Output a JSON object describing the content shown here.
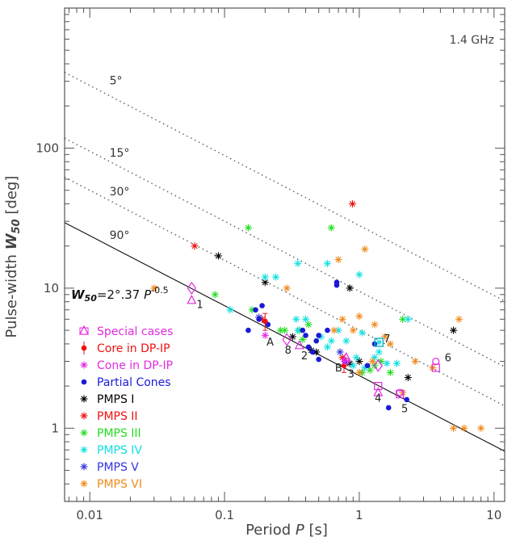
{
  "chart_data": {
    "type": "scatter",
    "xscale": "log",
    "yscale": "log",
    "xlim": [
      0.0065,
      12
    ],
    "ylim": [
      0.3,
      1000
    ],
    "xlabel": "Period P [s]",
    "ylabel": "Pulse-width W50 [deg]",
    "annotation": "1.4 GHz",
    "fit_label": "W50=2°.37 P^-0.5",
    "x_ticks": [
      "0.01",
      "0.1",
      "1",
      "10"
    ],
    "x_tick_values": [
      0.01,
      0.1,
      1,
      10
    ],
    "y_ticks": [
      "1",
      "10",
      "100"
    ],
    "y_tick_values": [
      1,
      10,
      100
    ],
    "lines": [
      {
        "label": "90°",
        "style": "solid",
        "coef": 2.37
      },
      {
        "label": "30°",
        "style": "dotted",
        "coef": 5.0
      },
      {
        "label": "15°",
        "style": "dotted",
        "coef": 9.5
      },
      {
        "label": "5°",
        "style": "dotted",
        "coef": 28.0
      }
    ],
    "line_labels": [
      {
        "text": "5°",
        "x": 0.014,
        "y": 285
      },
      {
        "text": "15°",
        "x": 0.014,
        "y": 87
      },
      {
        "text": "30°",
        "x": 0.014,
        "y": 46
      },
      {
        "text": "90°",
        "x": 0.014,
        "y": 22.5
      }
    ],
    "legend": [
      {
        "label": "Special cases",
        "color": "#e22be2",
        "marker": "triangle-diamond"
      },
      {
        "label": "Core in DP-IP",
        "color": "#ee1111",
        "marker": "dot-errorbar"
      },
      {
        "label": "Cone in DP-IP",
        "color": "#e22be2",
        "marker": "star"
      },
      {
        "label": "Partial Cones",
        "color": "#1a1ad6",
        "marker": "dot"
      },
      {
        "label": "PMPS I",
        "color": "#000000",
        "marker": "star"
      },
      {
        "label": "PMPS II",
        "color": "#ee1111",
        "marker": "star"
      },
      {
        "label": "PMPS III",
        "color": "#22dd22",
        "marker": "star"
      },
      {
        "label": "PMPS IV",
        "color": "#11e0e0",
        "marker": "star"
      },
      {
        "label": "PMPS V",
        "color": "#3333dd",
        "marker": "star"
      },
      {
        "label": "PMPS VI",
        "color": "#f08a1c",
        "marker": "star"
      }
    ],
    "series": [
      {
        "name": "PMPS I",
        "color": "#000000",
        "marker": "star",
        "points": [
          [
            0.09,
            17
          ],
          [
            0.2,
            11
          ],
          [
            0.85,
            10
          ],
          [
            0.32,
            4.5
          ],
          [
            0.44,
            3.6
          ],
          [
            0.48,
            3.5
          ],
          [
            0.85,
            2.9
          ],
          [
            2.3,
            2.3
          ],
          [
            5.0,
            5.0
          ],
          [
            1.0,
            3.0
          ]
        ]
      },
      {
        "name": "PMPS II",
        "color": "#ee1111",
        "marker": "star",
        "points": [
          [
            0.06,
            20
          ],
          [
            0.89,
            40
          ],
          [
            0.19,
            6.0
          ],
          [
            0.75,
            3.2
          ]
        ]
      },
      {
        "name": "PMPS III",
        "color": "#22dd22",
        "marker": "star",
        "points": [
          [
            0.15,
            27
          ],
          [
            0.62,
            27
          ],
          [
            0.085,
            9
          ],
          [
            0.16,
            7
          ],
          [
            0.26,
            5
          ],
          [
            0.28,
            5
          ],
          [
            0.42,
            5.5
          ],
          [
            0.36,
            5
          ],
          [
            0.38,
            4.3
          ],
          [
            1.05,
            2.5
          ],
          [
            1.2,
            2.6
          ],
          [
            1.45,
            3
          ],
          [
            1.3,
            2.8
          ],
          [
            1.7,
            2.5
          ],
          [
            2.1,
            6
          ]
        ]
      },
      {
        "name": "PMPS IV",
        "color": "#11e0e0",
        "marker": "star",
        "points": [
          [
            0.11,
            7
          ],
          [
            0.2,
            12
          ],
          [
            0.24,
            12
          ],
          [
            0.35,
            15
          ],
          [
            0.58,
            15
          ],
          [
            1.0,
            12.5
          ],
          [
            0.34,
            6
          ],
          [
            0.4,
            6
          ],
          [
            0.35,
            5
          ],
          [
            0.52,
            4.5
          ],
          [
            0.58,
            3.8
          ],
          [
            0.62,
            4.2
          ],
          [
            0.7,
            5
          ],
          [
            0.8,
            4.2
          ],
          [
            0.9,
            2.8
          ],
          [
            0.95,
            3.2
          ],
          [
            1.1,
            2.7
          ],
          [
            1.3,
            3.2
          ],
          [
            1.4,
            3.5
          ],
          [
            1.6,
            2.9
          ],
          [
            1.9,
            2.9
          ],
          [
            2.3,
            6
          ],
          [
            1.05,
            4.8
          ]
        ]
      },
      {
        "name": "PMPS V",
        "color": "#3333dd",
        "marker": "star",
        "points": [
          [
            0.18,
            6.2
          ],
          [
            0.72,
            3.5
          ]
        ]
      },
      {
        "name": "PMPS VI",
        "color": "#f08a1c",
        "marker": "star",
        "points": [
          [
            0.03,
            10
          ],
          [
            0.29,
            10
          ],
          [
            0.7,
            16
          ],
          [
            1.1,
            19
          ],
          [
            0.75,
            6
          ],
          [
            1.0,
            6.3
          ],
          [
            1.3,
            5.5
          ],
          [
            0.65,
            5
          ],
          [
            0.9,
            5
          ],
          [
            1.55,
            4.5
          ],
          [
            1.7,
            4
          ],
          [
            2.6,
            3
          ],
          [
            3.5,
            2.7
          ],
          [
            5.5,
            6
          ],
          [
            1.0,
            2.5
          ],
          [
            1.25,
            3
          ],
          [
            2.1,
            1.8
          ],
          [
            5.0,
            1
          ],
          [
            6.0,
            1
          ],
          [
            8.0,
            1
          ]
        ]
      },
      {
        "name": "Partial Cones",
        "color": "#1a1ad6",
        "marker": "dot",
        "points": [
          [
            0.17,
            7
          ],
          [
            0.19,
            7.5
          ],
          [
            0.18,
            6
          ],
          [
            0.2,
            5.8
          ],
          [
            0.21,
            5.5
          ],
          [
            0.15,
            5
          ],
          [
            0.38,
            5
          ],
          [
            0.4,
            4.6
          ],
          [
            0.5,
            4.6
          ],
          [
            0.48,
            4.2
          ],
          [
            0.58,
            5
          ],
          [
            0.45,
            3.5
          ],
          [
            0.5,
            3.1
          ],
          [
            0.42,
            3.8
          ],
          [
            0.68,
            11
          ],
          [
            0.68,
            10.5
          ],
          [
            1.15,
            2.8
          ],
          [
            1.3,
            4
          ],
          [
            1.65,
            1.4
          ],
          [
            2.25,
            1.6
          ],
          [
            0.78,
            3
          ]
        ]
      },
      {
        "name": "Core in DP-IP",
        "color": "#ee1111",
        "marker": "dot-errorbar",
        "points": [
          [
            0.2,
            5.8,
            0.8
          ],
          [
            0.77,
            2.8,
            0.3
          ]
        ]
      },
      {
        "name": "Cone in DP-IP",
        "color": "#e22be2",
        "marker": "star",
        "points": [
          [
            0.2,
            4.6
          ],
          [
            0.78,
            3.0
          ]
        ]
      },
      {
        "name": "Special cases",
        "color": "#e22be2",
        "marker": "mixed",
        "points": [
          {
            "x": 0.057,
            "y": 10,
            "m": "diamond"
          },
          {
            "x": 0.057,
            "y": 8.2,
            "m": "triangle"
          },
          {
            "x": 0.29,
            "y": 4.3,
            "m": "diamond"
          },
          {
            "x": 0.36,
            "y": 3.9,
            "m": "triangle"
          },
          {
            "x": 0.8,
            "y": 3.2,
            "m": "triangle"
          },
          {
            "x": 0.8,
            "y": 3.0,
            "m": "circle"
          },
          {
            "x": 1.38,
            "y": 2.8,
            "m": "diamond"
          },
          {
            "x": 1.38,
            "y": 2.0,
            "m": "square"
          },
          {
            "x": 1.38,
            "y": 1.8,
            "m": "triangle"
          },
          {
            "x": 1.4,
            "y": 4.1,
            "m": "square-cyan"
          },
          {
            "x": 2.0,
            "y": 1.75,
            "m": "square"
          },
          {
            "x": 2.0,
            "y": 1.8,
            "m": "circle"
          },
          {
            "x": 3.7,
            "y": 2.7,
            "m": "square"
          },
          {
            "x": 3.7,
            "y": 3.0,
            "m": "circle"
          }
        ]
      }
    ],
    "point_labels": [
      {
        "text": "1",
        "x": 0.062,
        "y": 7.2
      },
      {
        "text": "A",
        "x": 0.205,
        "y": 3.9
      },
      {
        "text": "8",
        "x": 0.28,
        "y": 3.4
      },
      {
        "text": "2",
        "x": 0.37,
        "y": 3.1
      },
      {
        "text": "B",
        "x": 0.66,
        "y": 2.55
      },
      {
        "text": "3",
        "x": 0.82,
        "y": 2.3
      },
      {
        "text": "7",
        "x": 1.52,
        "y": 4.1
      },
      {
        "text": "4",
        "x": 1.3,
        "y": 1.55
      },
      {
        "text": "5",
        "x": 2.05,
        "y": 1.3
      },
      {
        "text": "6",
        "x": 4.3,
        "y": 3.0
      }
    ]
  }
}
